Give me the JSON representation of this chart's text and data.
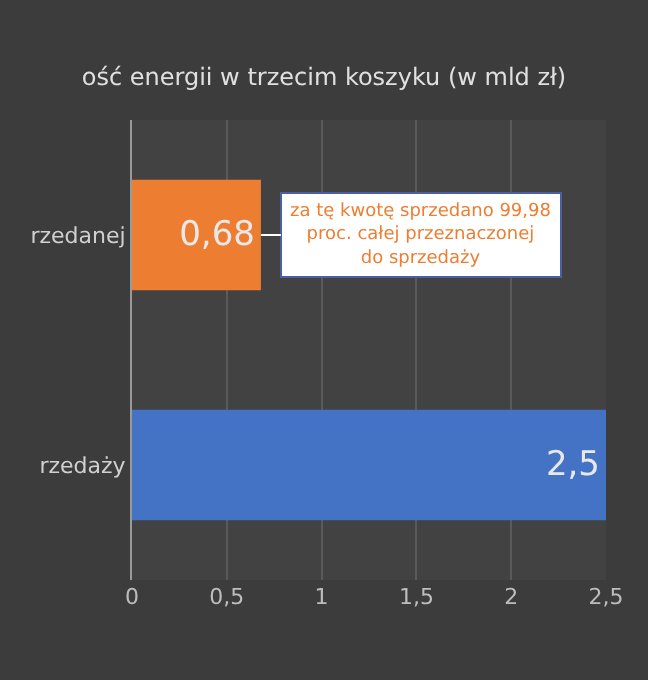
{
  "chart_data": {
    "type": "bar",
    "orientation": "horizontal",
    "title": "ość energii w trzecim koszyku (w mld zł)",
    "categories": [
      "rzedanej",
      "rzedaży"
    ],
    "values": [
      0.68,
      2.5
    ],
    "colors": [
      "#ed7d31",
      "#4472c4"
    ],
    "value_labels": [
      "0,68",
      "2,5"
    ],
    "xlim": [
      0,
      2.5
    ],
    "xticks": [
      0,
      {
        "value": 0.5,
        "label": "0,5"
      },
      1,
      {
        "value": 1.5,
        "label": "1,5"
      },
      2,
      {
        "value": 2.5,
        "label": "2,5"
      }
    ],
    "grid": "x",
    "legend": false,
    "annotations": [
      {
        "text": "za tę kwotę sprzedano 99,98 proc. całej\nprzeznaczonej do sprzedaży",
        "x": 0.68,
        "y": "rzedanej"
      }
    ]
  }
}
